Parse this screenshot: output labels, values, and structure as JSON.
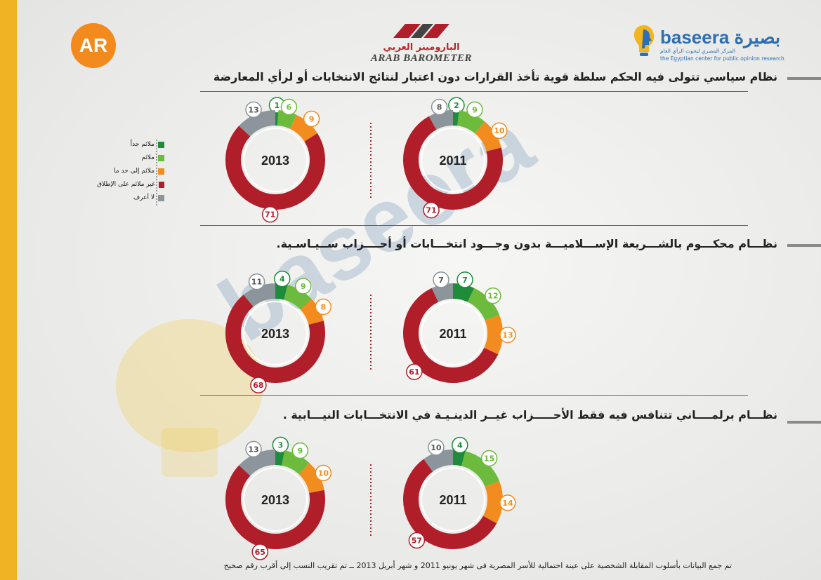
{
  "header": {
    "ar_logo_text": "AR",
    "arab_barometer_arabic": "البارومينر العربي",
    "arab_barometer_latin": "ARAB BAROMETER",
    "baseera_name": "baseera بصيرة",
    "baseera_sub_ar": "المركز المصري لبحوث الرأي العام",
    "baseera_sub_en": "the Egyptian center for public opinion research"
  },
  "legend": [
    {
      "label": "ملائم جداً",
      "color": "#1e8c3a"
    },
    {
      "label": "ملائم",
      "color": "#6dbb3c"
    },
    {
      "label": "ملائم إلى حد ما",
      "color": "#f28c1e"
    },
    {
      "label": "غير ملائم على الإطلاق",
      "color": "#b01e2a"
    },
    {
      "label": "لا أعرف",
      "color": "#8b959b"
    }
  ],
  "questions": [
    "نظام سياسي تتولى فيه الحكم سلطة قوية تأخذ القرارات دون اعتبار لنتائج الانتخابات أو لرأي المعارضة",
    "نظـــام محكـــوم بالشـــريعة الإســـلاميـــة بدون وجـــود انتخـــابات أو أحــــزاب ســيـاسـية.",
    "نظـــام برلمــــاني تتنافس فيه فقط الأحـــــزاب غيــر الدينـيـة في الانتخـــابات النيـــابية ."
  ],
  "footnote": "تم جمع البيانات بأسلوب المقابلة الشخصية على عينة احتمالية للأسر المصرية فى شهر يونيو 2011 و شهر أبريل 2013 ــ  تم تقريب النسب إلى أقرب رقم صحيح",
  "chart_data": [
    {
      "type": "pie",
      "question_index": 0,
      "year": "2013",
      "categories": [
        "ملائم جداً",
        "ملائم",
        "ملائم إلى حد ما",
        "غير ملائم على الإطلاق",
        "لا أعرف"
      ],
      "values": [
        1,
        6,
        9,
        71,
        13
      ]
    },
    {
      "type": "pie",
      "question_index": 0,
      "year": "2011",
      "categories": [
        "ملائم جداً",
        "ملائم",
        "ملائم إلى حد ما",
        "غير ملائم على الإطلاق",
        "لا أعرف"
      ],
      "values": [
        2,
        9,
        10,
        71,
        8
      ]
    },
    {
      "type": "pie",
      "question_index": 1,
      "year": "2013",
      "categories": [
        "ملائم جداً",
        "ملائم",
        "ملائم إلى حد ما",
        "غير ملائم على الإطلاق",
        "لا أعرف"
      ],
      "values": [
        4,
        9,
        8,
        68,
        11
      ]
    },
    {
      "type": "pie",
      "question_index": 1,
      "year": "2011",
      "categories": [
        "ملائم جداً",
        "ملائم",
        "ملائم إلى حد ما",
        "غير ملائم على الإطلاق",
        "لا أعرف"
      ],
      "values": [
        7,
        12,
        13,
        61,
        7
      ]
    },
    {
      "type": "pie",
      "question_index": 2,
      "year": "2013",
      "categories": [
        "ملائم جداً",
        "ملائم",
        "ملائم إلى حد ما",
        "غير ملائم على الإطلاق",
        "لا أعرف"
      ],
      "values": [
        3,
        9,
        10,
        65,
        13
      ]
    },
    {
      "type": "pie",
      "question_index": 2,
      "year": "2011",
      "categories": [
        "ملائم جداً",
        "ملائم",
        "ملائم إلى حد ما",
        "غير ملائم على الإطلاق",
        "لا أعرف"
      ],
      "values": [
        4,
        15,
        14,
        57,
        10
      ]
    }
  ]
}
